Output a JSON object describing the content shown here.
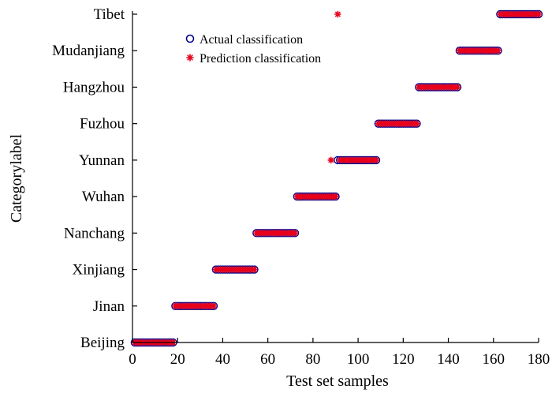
{
  "chart_data": {
    "type": "scatter",
    "xlabel": "Test set samples",
    "ylabel": "Categorylabel",
    "xlim": [
      0,
      180
    ],
    "xticks": [
      "0",
      "20",
      "40",
      "60",
      "80",
      "100",
      "120",
      "140",
      "160",
      "180"
    ],
    "categories": [
      "Beijing",
      "Jinan",
      "Xinjiang",
      "Nanchang",
      "Wuhan",
      "Yunnan",
      "Fuzhou",
      "Hangzhou",
      "Mudanjiang",
      "Tibet"
    ],
    "grid": false,
    "legend_position": "top-center",
    "series": [
      {
        "name": "Actual classification",
        "marker": "circle",
        "color": "#00008B",
        "ranges": [
          {
            "category": "Beijing",
            "x_start": 1,
            "x_end": 18
          },
          {
            "category": "Jinan",
            "x_start": 19,
            "x_end": 36
          },
          {
            "category": "Xinjiang",
            "x_start": 37,
            "x_end": 54
          },
          {
            "category": "Nanchang",
            "x_start": 55,
            "x_end": 72
          },
          {
            "category": "Wuhan",
            "x_start": 73,
            "x_end": 90
          },
          {
            "category": "Yunnan",
            "x_start": 91,
            "x_end": 108
          },
          {
            "category": "Fuzhou",
            "x_start": 109,
            "x_end": 126
          },
          {
            "category": "Hangzhou",
            "x_start": 127,
            "x_end": 144
          },
          {
            "category": "Mudanjiang",
            "x_start": 145,
            "x_end": 162
          },
          {
            "category": "Tibet",
            "x_start": 163,
            "x_end": 180
          }
        ]
      },
      {
        "name": "Prediction classification",
        "marker": "asterisk",
        "color": "#E8001C",
        "ranges": [
          {
            "category": "Beijing",
            "x_start": 1,
            "x_end": 18
          },
          {
            "category": "Jinan",
            "x_start": 19,
            "x_end": 36
          },
          {
            "category": "Xinjiang",
            "x_start": 37,
            "x_end": 54
          },
          {
            "category": "Nanchang",
            "x_start": 55,
            "x_end": 72
          },
          {
            "category": "Wuhan",
            "x_start": 73,
            "x_end": 90
          },
          {
            "category": "Yunnan",
            "x_start": 92,
            "x_end": 108
          },
          {
            "category": "Fuzhou",
            "x_start": 109,
            "x_end": 126
          },
          {
            "category": "Hangzhou",
            "x_start": 127,
            "x_end": 144
          },
          {
            "category": "Mudanjiang",
            "x_start": 145,
            "x_end": 162
          },
          {
            "category": "Tibet",
            "x_start": 163,
            "x_end": 180
          }
        ],
        "points": [
          {
            "x": 88,
            "category": "Yunnan"
          },
          {
            "x": 91,
            "category": "Tibet"
          }
        ]
      }
    ]
  }
}
